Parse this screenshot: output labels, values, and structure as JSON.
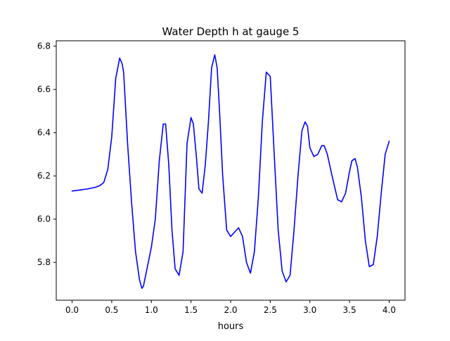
{
  "chart_data": {
    "type": "line",
    "title": "Water Depth h at gauge 5",
    "xlabel": "hours",
    "ylabel": "",
    "xlim": [
      -0.2,
      4.2
    ],
    "ylim": [
      5.625,
      6.825
    ],
    "xticks": [
      0.0,
      0.5,
      1.0,
      1.5,
      2.0,
      2.5,
      3.0,
      3.5,
      4.0
    ],
    "xtick_labels": [
      "0.0",
      "0.5",
      "1.0",
      "1.5",
      "2.0",
      "2.5",
      "3.0",
      "3.5",
      "4.0"
    ],
    "yticks": [
      5.8,
      6.0,
      6.2,
      6.4,
      6.6,
      6.8
    ],
    "ytick_labels": [
      "5.8",
      "6.0",
      "6.2",
      "6.4",
      "6.6",
      "6.8"
    ],
    "grid": false,
    "legend": "none",
    "series": [
      {
        "color": "#0000ff",
        "x": [
          0.0,
          0.1,
          0.2,
          0.3,
          0.35,
          0.4,
          0.45,
          0.5,
          0.55,
          0.6,
          0.63,
          0.65,
          0.7,
          0.75,
          0.8,
          0.85,
          0.88,
          0.9,
          0.95,
          1.0,
          1.05,
          1.1,
          1.15,
          1.18,
          1.22,
          1.26,
          1.3,
          1.35,
          1.4,
          1.45,
          1.5,
          1.53,
          1.57,
          1.6,
          1.64,
          1.68,
          1.72,
          1.76,
          1.8,
          1.83,
          1.86,
          1.9,
          1.95,
          2.0,
          2.05,
          2.1,
          2.15,
          2.2,
          2.25,
          2.3,
          2.35,
          2.4,
          2.45,
          2.5,
          2.55,
          2.6,
          2.65,
          2.7,
          2.75,
          2.8,
          2.85,
          2.9,
          2.94,
          2.97,
          3.0,
          3.05,
          3.1,
          3.15,
          3.18,
          3.22,
          3.28,
          3.35,
          3.4,
          3.45,
          3.5,
          3.53,
          3.57,
          3.6,
          3.65,
          3.7,
          3.75,
          3.8,
          3.85,
          3.9,
          3.95,
          4.0
        ],
        "values": [
          6.13,
          6.135,
          6.14,
          6.148,
          6.155,
          6.17,
          6.23,
          6.38,
          6.65,
          6.745,
          6.72,
          6.68,
          6.35,
          6.08,
          5.85,
          5.72,
          5.68,
          5.69,
          5.78,
          5.87,
          6.0,
          6.27,
          6.44,
          6.44,
          6.25,
          5.95,
          5.77,
          5.74,
          5.85,
          6.35,
          6.47,
          6.44,
          6.28,
          6.14,
          6.12,
          6.25,
          6.45,
          6.7,
          6.76,
          6.7,
          6.5,
          6.2,
          5.95,
          5.92,
          5.94,
          5.96,
          5.92,
          5.8,
          5.75,
          5.85,
          6.1,
          6.45,
          6.68,
          6.66,
          6.3,
          5.95,
          5.76,
          5.71,
          5.74,
          5.95,
          6.2,
          6.41,
          6.45,
          6.43,
          6.33,
          6.29,
          6.3,
          6.34,
          6.34,
          6.3,
          6.2,
          6.09,
          6.08,
          6.12,
          6.22,
          6.27,
          6.28,
          6.24,
          6.1,
          5.9,
          5.78,
          5.79,
          5.92,
          6.12,
          6.3,
          6.36
        ]
      }
    ]
  }
}
